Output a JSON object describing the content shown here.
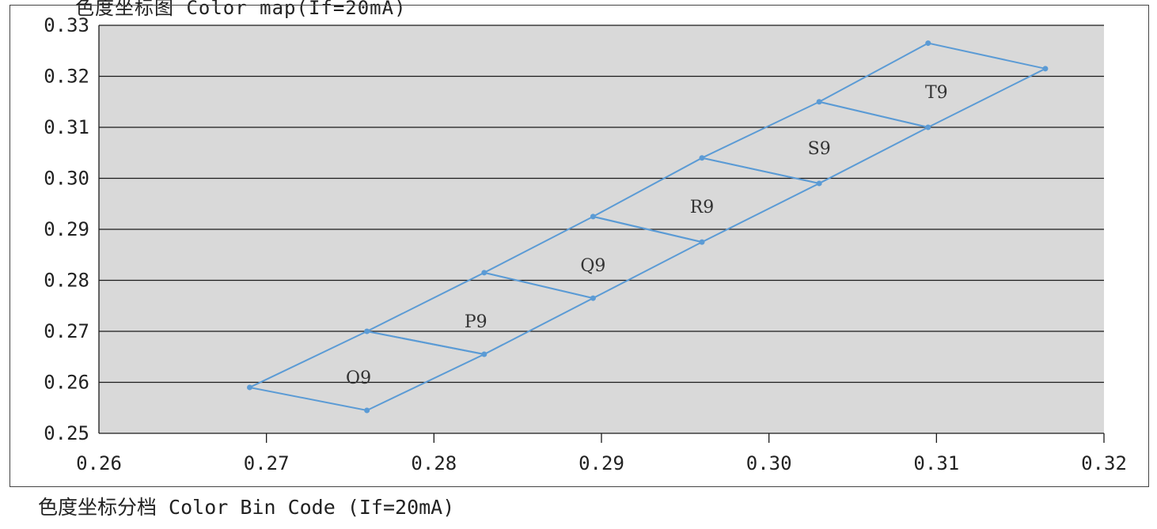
{
  "chart_data": {
    "type": "scatter",
    "title": "色度坐标图 Color map(If=20mA)",
    "caption": "色度坐标分档 Color Bin Code (If=20mA)",
    "xlabel": "",
    "ylabel": "",
    "xlim": [
      0.26,
      0.32
    ],
    "ylim": [
      0.25,
      0.33
    ],
    "x_ticks": [
      "0.26",
      "0.27",
      "0.28",
      "0.29",
      "0.30",
      "0.31",
      "0.32"
    ],
    "y_ticks": [
      "0.25",
      "0.26",
      "0.27",
      "0.28",
      "0.29",
      "0.30",
      "0.31",
      "0.32",
      "0.33"
    ],
    "grid": "horizontal",
    "plot_background": "#d9d9d9",
    "line_color": "#5b9bd5",
    "bins": [
      {
        "name": "O9",
        "points": [
          [
            0.269,
            0.259
          ],
          [
            0.276,
            0.27
          ],
          [
            0.283,
            0.2655
          ],
          [
            0.276,
            0.2545
          ]
        ],
        "label_at": [
          0.2755,
          0.261
        ]
      },
      {
        "name": "P9",
        "points": [
          [
            0.276,
            0.27
          ],
          [
            0.283,
            0.2815
          ],
          [
            0.2895,
            0.2765
          ],
          [
            0.283,
            0.2655
          ]
        ],
        "label_at": [
          0.2825,
          0.272
        ]
      },
      {
        "name": "Q9",
        "points": [
          [
            0.283,
            0.2815
          ],
          [
            0.2895,
            0.2925
          ],
          [
            0.296,
            0.2875
          ],
          [
            0.2895,
            0.2765
          ]
        ],
        "label_at": [
          0.2895,
          0.283
        ]
      },
      {
        "name": "R9",
        "points": [
          [
            0.2895,
            0.2925
          ],
          [
            0.296,
            0.304
          ],
          [
            0.303,
            0.299
          ],
          [
            0.296,
            0.2875
          ]
        ],
        "label_at": [
          0.296,
          0.2945
        ]
      },
      {
        "name": "S9",
        "points": [
          [
            0.296,
            0.304
          ],
          [
            0.303,
            0.315
          ],
          [
            0.3095,
            0.31
          ],
          [
            0.303,
            0.299
          ]
        ],
        "label_at": [
          0.303,
          0.306
        ]
      },
      {
        "name": "T9",
        "points": [
          [
            0.303,
            0.315
          ],
          [
            0.3095,
            0.3265
          ],
          [
            0.3165,
            0.3215
          ],
          [
            0.3095,
            0.31
          ]
        ],
        "label_at": [
          0.31,
          0.317
        ]
      }
    ]
  }
}
